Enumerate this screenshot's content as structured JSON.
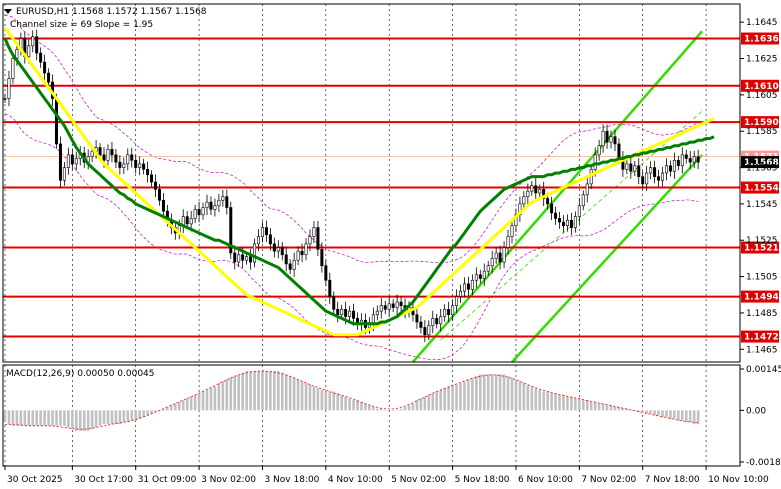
{
  "header": {
    "symbol_line": "EURUSD,H1  1.1568 1.1572 1.1567 1.1568",
    "channel_line": "Channel size = 69  Slope = 1.95"
  },
  "macd": {
    "label": "MACD(12,26,9) 0.00050 0.00045",
    "axis_ticks": [
      {
        "value": 0.00145,
        "label": "0.00145"
      },
      {
        "value": 0.0,
        "label": "0.00"
      },
      {
        "value": -0.00181,
        "label": "-0.00181"
      }
    ],
    "color_hist": "#c0c0c0",
    "color_signal": "#ff0000"
  },
  "price_axis": {
    "min": 1.1458,
    "max": 1.1655,
    "ticks": [
      {
        "value": 1.1645,
        "label": "1.1645"
      },
      {
        "value": 1.1625,
        "label": "1.1625"
      },
      {
        "value": 1.1605,
        "label": "1.1605"
      },
      {
        "value": 1.1585,
        "label": "1.1585"
      },
      {
        "value": 1.1565,
        "label": "1.1565"
      },
      {
        "value": 1.1545,
        "label": "1.1545"
      },
      {
        "value": 1.1525,
        "label": "1.1525"
      },
      {
        "value": 1.1505,
        "label": "1.1505"
      },
      {
        "value": 1.1485,
        "label": "1.1485"
      },
      {
        "value": 1.1465,
        "label": "1.1465"
      }
    ]
  },
  "levels": [
    {
      "value": 1.1636,
      "label": "1.1636"
    },
    {
      "value": 1.161,
      "label": "1.1610"
    },
    {
      "value": 1.159,
      "label": "1.1590"
    },
    {
      "value": 1.1554,
      "label": "1.1554"
    },
    {
      "value": 1.1521,
      "label": "1.1521"
    },
    {
      "value": 1.1494,
      "label": "1.1494"
    },
    {
      "value": 1.1472,
      "label": "1.1472"
    }
  ],
  "current_price": {
    "value": 1.1568,
    "label": "1.1568"
  },
  "ghost_price": {
    "value": 1.1571,
    "label": "1.1571"
  },
  "time_axis": [
    {
      "index": 0,
      "label": "30 Oct 2025"
    },
    {
      "index": 17,
      "label": "30 Oct 17:00"
    },
    {
      "index": 33,
      "label": "31 Oct 09:00"
    },
    {
      "index": 49,
      "label": "3 Nov 02:00"
    },
    {
      "index": 65,
      "label": "3 Nov 18:00"
    },
    {
      "index": 81,
      "label": "4 Nov 10:00"
    },
    {
      "index": 97,
      "label": "5 Nov 02:00"
    },
    {
      "index": 113,
      "label": "5 Nov 18:00"
    },
    {
      "index": 129,
      "label": "6 Nov 10:00"
    },
    {
      "index": 145,
      "label": "7 Nov 02:00"
    },
    {
      "index": 161,
      "label": "7 Nov 18:00"
    },
    {
      "index": 177,
      "label": "10 Nov 10:00"
    }
  ],
  "colors": {
    "level": "#e00000",
    "ma_fast": "#008000",
    "ma_slow": "#ffff00",
    "channel": "#33dd00",
    "bollinger": "#cc00cc",
    "candle": "#000000",
    "grid": "#000000",
    "current_price_bg": "#000000",
    "ghost_price_bg": "#ff9999"
  },
  "chart_data": {
    "type": "candlestick",
    "x_count": 180,
    "closes": [
      1.1603,
      1.1614,
      1.1625,
      1.163,
      1.1636,
      1.1626,
      1.1632,
      1.1637,
      1.1628,
      1.1623,
      1.1617,
      1.1612,
      1.1603,
      1.1578,
      1.1558,
      1.1565,
      1.1572,
      1.1567,
      1.157,
      1.1573,
      1.1568,
      1.1571,
      1.1574,
      1.1576,
      1.1572,
      1.1569,
      1.1575,
      1.1572,
      1.1568,
      1.1565,
      1.1567,
      1.1572,
      1.1569,
      1.1565,
      1.1567,
      1.1564,
      1.1561,
      1.1557,
      1.1553,
      1.1547,
      1.1541,
      1.1536,
      1.1532,
      1.1529,
      1.1533,
      1.1538,
      1.1534,
      1.1537,
      1.1542,
      1.1539,
      1.1543,
      1.1546,
      1.1542,
      1.1544,
      1.1547,
      1.1549,
      1.1543,
      1.1518,
      1.1513,
      1.1517,
      1.1514,
      1.1516,
      1.1513,
      1.1523,
      1.1527,
      1.1532,
      1.1528,
      1.1523,
      1.1519,
      1.1521,
      1.1517,
      1.1512,
      1.1509,
      1.1514,
      1.1519,
      1.1517,
      1.1523,
      1.1527,
      1.1532,
      1.152,
      1.1511,
      1.1503,
      1.1494,
      1.1487,
      1.1484,
      1.1487,
      1.1483,
      1.1486,
      1.1482,
      1.1479,
      1.1481,
      1.1477,
      1.1479,
      1.1484,
      1.1486,
      1.1489,
      1.1487,
      1.149,
      1.1488,
      1.1491,
      1.1489,
      1.1486,
      1.1488,
      1.1484,
      1.148,
      1.1477,
      1.1473,
      1.1478,
      1.1482,
      1.1479,
      1.1483,
      1.1487,
      1.1484,
      1.1489,
      1.1494,
      1.1497,
      1.1501,
      1.1498,
      1.1503,
      1.1506,
      1.1504,
      1.1508,
      1.1511,
      1.1515,
      1.1518,
      1.1513,
      1.1521,
      1.1527,
      1.1533,
      1.1539,
      1.1545,
      1.1549,
      1.1552,
      1.1555,
      1.1551,
      1.1553,
      1.1548,
      1.1545,
      1.154,
      1.1537,
      1.1535,
      1.1533,
      1.1536,
      1.1532,
      1.1538,
      1.1544,
      1.155,
      1.1556,
      1.1564,
      1.1572,
      1.1577,
      1.1585,
      1.1579,
      1.1582,
      1.1578,
      1.157,
      1.1564,
      1.1567,
      1.1563,
      1.1566,
      1.156,
      1.1556,
      1.1562,
      1.1565,
      1.156,
      1.1558,
      1.1562,
      1.1566,
      1.1563,
      1.1569,
      1.1566,
      1.1572,
      1.157,
      1.1568,
      1.1571,
      1.1568
    ],
    "ma_fast": [
      1.1636,
      1.1631,
      1.1627,
      1.1624,
      1.1621,
      1.1618,
      1.1615,
      1.1612,
      1.1609,
      1.1606,
      1.1603,
      1.16,
      1.1597,
      1.1594,
      1.1591,
      1.1588,
      1.1584,
      1.158,
      1.1576,
      1.1573,
      1.157,
      1.1567,
      1.1565,
      1.1563,
      1.1561,
      1.1559,
      1.1557,
      1.1555,
      1.1553,
      1.1551,
      1.155,
      1.1548,
      1.1547,
      1.1545,
      1.1544,
      1.1543,
      1.1542,
      1.1541,
      1.154,
      1.1539,
      1.1538,
      1.1537,
      1.1536,
      1.1535,
      1.1534,
      1.1533,
      1.1532,
      1.1531,
      1.153,
      1.1529,
      1.1528,
      1.1527,
      1.1526,
      1.1525,
      1.1525,
      1.1524,
      1.1523,
      1.1522,
      1.1521,
      1.152,
      1.1519,
      1.1518,
      1.1517,
      1.1516,
      1.1515,
      1.1514,
      1.1513,
      1.1512,
      1.1511,
      1.151,
      1.1508,
      1.1506,
      1.1504,
      1.1502,
      1.15,
      1.1498,
      1.1496,
      1.1494,
      1.1492,
      1.149,
      1.1488,
      1.1486,
      1.1485,
      1.1484,
      1.1483,
      1.1482,
      1.1481,
      1.148,
      1.1479,
      1.1479,
      1.1479,
      1.1479,
      1.1479,
      1.1479,
      1.1479,
      1.148,
      1.148,
      1.1481,
      1.1482,
      1.1483,
      1.1485,
      1.1487,
      1.1489,
      1.1491,
      1.1494,
      1.1497,
      1.15,
      1.1503,
      1.1506,
      1.1509,
      1.1512,
      1.1515,
      1.1518,
      1.1521,
      1.1523,
      1.1526,
      1.1529,
      1.1532,
      1.1535,
      1.1538,
      1.1541,
      1.1543,
      1.1545,
      1.1547,
      1.1549,
      1.1551,
      1.1553,
      1.1554,
      1.1555,
      1.1556,
      1.1557,
      1.1558,
      1.1559,
      1.156,
      1.156,
      1.156,
      1.156,
      1.1561,
      1.1561,
      1.1562,
      1.1562,
      1.1563,
      1.1563,
      1.1564,
      1.1564,
      1.1565,
      1.1565,
      1.1566,
      1.1566,
      1.1567,
      1.1567,
      1.1568,
      1.1568,
      1.1569,
      1.1569,
      1.157,
      1.157,
      1.1571,
      1.1571,
      1.1572,
      1.1572,
      1.1573,
      1.1573,
      1.1574,
      1.1574,
      1.1575,
      1.1575,
      1.1576,
      1.1576,
      1.1577,
      1.1577,
      1.1578,
      1.1578,
      1.1579,
      1.1579,
      1.158,
      1.158,
      1.1581,
      1.1581,
      1.1582
    ],
    "ma_slow": [
      1.1642,
      1.1639,
      1.1636,
      1.1633,
      1.163,
      1.1627,
      1.1624,
      1.1621,
      1.1618,
      1.1615,
      1.1612,
      1.1609,
      1.1606,
      1.1603,
      1.16,
      1.1597,
      1.1594,
      1.1591,
      1.1588,
      1.1585,
      1.1582,
      1.1579,
      1.1576,
      1.1573,
      1.157,
      1.1567,
      1.1565,
      1.1563,
      1.1561,
      1.1559,
      1.1557,
      1.1555,
      1.1553,
      1.1551,
      1.1549,
      1.1547,
      1.1545,
      1.1543,
      1.1541,
      1.1539,
      1.1537,
      1.1535,
      1.1533,
      1.1531,
      1.1529,
      1.1527,
      1.1525,
      1.1523,
      1.1521,
      1.1519,
      1.1517,
      1.1515,
      1.1513,
      1.1511,
      1.1509,
      1.1507,
      1.1505,
      1.1503,
      1.1501,
      1.1499,
      1.1497,
      1.1495,
      1.1494,
      1.1493,
      1.1492,
      1.1491,
      1.149,
      1.1489,
      1.1488,
      1.1487,
      1.1486,
      1.1485,
      1.1484,
      1.1483,
      1.1482,
      1.1481,
      1.148,
      1.1479,
      1.1478,
      1.1477,
      1.1476,
      1.1475,
      1.1474,
      1.1473,
      1.1473,
      1.1473,
      1.1473,
      1.1473,
      1.1473,
      1.1473,
      1.1474,
      1.1475,
      1.1476,
      1.1477,
      1.1478,
      1.1479,
      1.148,
      1.1481,
      1.1482,
      1.1483,
      1.1484,
      1.1485,
      1.1486,
      1.1487,
      1.1488,
      1.149,
      1.1492,
      1.1494,
      1.1496,
      1.1498,
      1.15,
      1.1502,
      1.1504,
      1.1506,
      1.1508,
      1.151,
      1.1512,
      1.1514,
      1.1516,
      1.1518,
      1.152,
      1.1522,
      1.1524,
      1.1526,
      1.1528,
      1.153,
      1.1532,
      1.1534,
      1.1536,
      1.1538,
      1.154,
      1.1542,
      1.1544,
      1.1546,
      1.1547,
      1.1548,
      1.1549,
      1.155,
      1.1551,
      1.1552,
      1.1553,
      1.1554,
      1.1555,
      1.1556,
      1.1557,
      1.1558,
      1.1559,
      1.156,
      1.1561,
      1.1562,
      1.1563,
      1.1564,
      1.1565,
      1.1566,
      1.1567,
      1.1568,
      1.1569,
      1.157,
      1.1571,
      1.1572,
      1.1573,
      1.1574,
      1.1575,
      1.1576,
      1.1577,
      1.1578,
      1.1579,
      1.158,
      1.1581,
      1.1582,
      1.1583,
      1.1584,
      1.1585,
      1.1586,
      1.1587,
      1.1588,
      1.1589,
      1.159,
      1.1591,
      1.1592
    ]
  }
}
